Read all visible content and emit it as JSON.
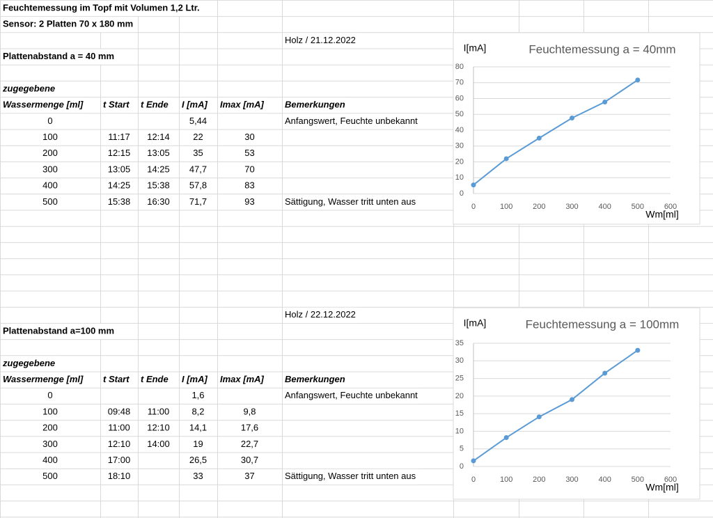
{
  "title": "Feuchtemessung im Topf mit Volumen 1,2 Ltr.",
  "sensor": "Sensor: 2 Platten 70 x 180 mm",
  "blocks": [
    {
      "date": "Holz / 21.12.2022",
      "spacing": "Plattenabstand a = 40 mm",
      "header_top": "zugegebene",
      "headers": [
        "Wassermenge [ml]",
        "t Start",
        "t Ende",
        "I [mA]",
        "Imax [mA]",
        "Bemerkungen"
      ],
      "rows": [
        [
          "0",
          null,
          null,
          "5,44",
          null,
          "Anfangswert, Feuchte unbekannt"
        ],
        [
          "100",
          "11:17",
          "12:14",
          "22",
          "30",
          null
        ],
        [
          "200",
          "12:15",
          "13:05",
          "35",
          "53",
          null
        ],
        [
          "300",
          "13:05",
          "14:25",
          "47,7",
          "70",
          null
        ],
        [
          "400",
          "14:25",
          "15:38",
          "57,8",
          "83",
          null
        ],
        [
          "500",
          "15:38",
          "16:30",
          "71,7",
          "93",
          "Sättigung, Wasser tritt unten aus"
        ]
      ],
      "chart": {
        "type": "line",
        "title": "Feuchtemessung a = 40mm",
        "y_label": "I[mA]",
        "x_label": "Wm[ml]",
        "x": [
          0,
          100,
          200,
          300,
          400,
          500
        ],
        "values": [
          5.44,
          22,
          35,
          47.7,
          57.8,
          71.7
        ],
        "color": "#5b9bd5",
        "xlim": [
          0,
          600
        ],
        "ylim": [
          0,
          80
        ],
        "xticks": [
          0,
          100,
          200,
          300,
          400,
          500,
          600
        ],
        "yticks": [
          0,
          10,
          20,
          30,
          40,
          50,
          60,
          70,
          80
        ],
        "grid": true
      }
    },
    {
      "date": "Holz / 22.12.2022",
      "spacing": "Plattenabstand a=100 mm",
      "header_top": "zugegebene",
      "headers": [
        "Wassermenge [ml]",
        "t Start",
        "t Ende",
        "I [mA]",
        "Imax [mA]",
        "Bemerkungen"
      ],
      "rows": [
        [
          "0",
          null,
          null,
          "1,6",
          null,
          "Anfangswert, Feuchte unbekannt"
        ],
        [
          "100",
          "09:48",
          "11:00",
          "8,2",
          "9,8",
          null
        ],
        [
          "200",
          "11:00",
          "12:10",
          "14,1",
          "17,6",
          null
        ],
        [
          "300",
          "12:10",
          "14:00",
          "19",
          "22,7",
          null
        ],
        [
          "400",
          "17:00",
          null,
          "26,5",
          "30,7",
          null
        ],
        [
          "500",
          "18:10",
          null,
          "33",
          "37",
          "Sättigung, Wasser tritt unten aus"
        ]
      ],
      "chart": {
        "type": "line",
        "title": "Feuchtemessung a = 100mm",
        "y_label": "I[mA]",
        "x_label": "Wm[ml]",
        "x": [
          0,
          100,
          200,
          300,
          400,
          500
        ],
        "values": [
          1.6,
          8.2,
          14.1,
          19,
          26.5,
          33
        ],
        "color": "#5b9bd5",
        "xlim": [
          0,
          600
        ],
        "ylim": [
          0,
          35
        ],
        "xticks": [
          0,
          100,
          200,
          300,
          400,
          500,
          600
        ],
        "yticks": [
          0,
          5,
          10,
          15,
          20,
          25,
          30,
          35
        ],
        "grid": true
      }
    }
  ]
}
